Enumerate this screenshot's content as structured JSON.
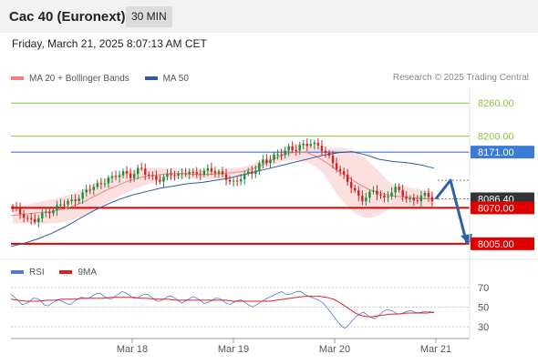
{
  "header": {
    "title": "Cac 40 (Euronext)",
    "timeframe": "30 MIN"
  },
  "datetime": "Friday, March 21, 2025 8:07:13 AM CET",
  "copyright": "Research © 2025 Trading Central",
  "colors": {
    "bull": "#1a8f3a",
    "bear": "#c62828",
    "ma20": "#f08080",
    "ma50": "#2e5a9e",
    "band": "#fbd6d6",
    "support": "#e00000",
    "pivot": "#3a7bd5",
    "resistance": "#8cc63f",
    "arrow": "#2e62a8",
    "rsi": "#5577dd",
    "rsi_ma": "#e02020",
    "last": "#333333"
  },
  "chart_data": [
    {
      "type": "candlestick",
      "legend": [
        {
          "name": "MA 20 + Bollinger Bands",
          "color": "#f08080"
        },
        {
          "name": "MA 50",
          "color": "#2e5a9e"
        }
      ],
      "ylim": [
        7980,
        8290
      ],
      "x_tick_labels": [
        "Mar 18",
        "Mar 19",
        "Mar 20",
        "Mar 21"
      ],
      "levels": [
        {
          "value": 8260.0,
          "label": "8260.00",
          "kind": "resistance"
        },
        {
          "value": 8200.0,
          "label": "8200.00",
          "kind": "resistance"
        },
        {
          "value": 8171.0,
          "label": "8171.00",
          "kind": "pivot"
        },
        {
          "value": 8086.4,
          "label": "8086.40",
          "kind": "last"
        },
        {
          "value": 8070.0,
          "label": "8070.00",
          "kind": "support"
        },
        {
          "value": 8005.0,
          "label": "8005.00",
          "kind": "support"
        }
      ],
      "close_path": [
        8070,
        8062,
        8058,
        8050,
        8044,
        8052,
        8060,
        8066,
        8070,
        8075,
        8078,
        8082,
        8088,
        8095,
        8100,
        8106,
        8112,
        8118,
        8124,
        8122,
        8130,
        8136,
        8128,
        8134,
        8140,
        8132,
        8128,
        8124,
        8120,
        8126,
        8132,
        8130,
        8134,
        8136,
        8128,
        8132,
        8138,
        8142,
        8134,
        8130,
        8126,
        8120,
        8116,
        8124,
        8130,
        8134,
        8146,
        8156,
        8152,
        8160,
        8168,
        8174,
        8178,
        8172,
        8180,
        8186,
        8190,
        8184,
        8176,
        8168,
        8158,
        8145,
        8130,
        8118,
        8104,
        8094,
        8086,
        8092,
        8100,
        8094,
        8088,
        8098,
        8104,
        8096,
        8090,
        8086,
        8084,
        8090,
        8092,
        8086
      ],
      "ma20_path": [
        8056,
        8058,
        8060,
        8062,
        8064,
        8068,
        8074,
        8082,
        8092,
        8102,
        8110,
        8118,
        8124,
        8128,
        8130,
        8132,
        8132,
        8131,
        8130,
        8131,
        8132,
        8134,
        8136,
        8142,
        8150,
        8160,
        8168,
        8172,
        8170,
        8162,
        8150,
        8136,
        8124,
        8112,
        8102,
        8096,
        8092,
        8090,
        8088,
        8087,
        8086
      ],
      "ma50_path": [
        8000,
        8006,
        8014,
        8024,
        8036,
        8050,
        8064,
        8076,
        8086,
        8094,
        8100,
        8106,
        8110,
        8114,
        8116,
        8120,
        8124,
        8130,
        8136,
        8142,
        8148,
        8154,
        8160,
        8166,
        8170,
        8172,
        8166,
        8158,
        8154,
        8152,
        8148,
        8142
      ],
      "forecast": [
        8086.4,
        8120,
        8005
      ]
    },
    {
      "type": "line",
      "legend": [
        {
          "name": "RSI",
          "color": "#5577dd"
        },
        {
          "name": "9MA",
          "color": "#e02020"
        }
      ],
      "ylim": [
        20,
        80
      ],
      "y_tick_labels": [
        "70",
        "50",
        "30"
      ],
      "y_ticks": [
        70,
        50,
        30
      ],
      "series": [
        {
          "name": "RSI",
          "values": [
            63,
            58,
            52,
            55,
            60,
            57,
            50,
            54,
            58,
            55,
            52,
            57,
            60,
            58,
            62,
            65,
            60,
            58,
            62,
            66,
            63,
            58,
            61,
            64,
            60,
            55,
            58,
            62,
            59,
            54,
            57,
            61,
            58,
            53,
            56,
            60,
            57,
            52,
            55,
            58,
            54,
            50,
            53,
            57,
            60,
            63,
            66,
            62,
            64,
            67,
            63,
            60,
            58,
            55,
            48,
            40,
            32,
            28,
            36,
            42,
            45,
            40,
            38,
            44,
            48,
            46,
            42,
            45,
            47,
            44,
            45,
            46,
            44
          ]
        },
        {
          "name": "9MA",
          "values": [
            58,
            57,
            56,
            56,
            56,
            57,
            57,
            58,
            58,
            58,
            59,
            59,
            59,
            59,
            60,
            60,
            60,
            60,
            59,
            59,
            58,
            58,
            58,
            57,
            57,
            57,
            57,
            57,
            57,
            57,
            57,
            56,
            56,
            56,
            56,
            56,
            56,
            57,
            58,
            59,
            60,
            61,
            61,
            61,
            60,
            58,
            54,
            49,
            44,
            41,
            40,
            41,
            42,
            43,
            43,
            44,
            44,
            44,
            44,
            45
          ]
        }
      ]
    }
  ]
}
